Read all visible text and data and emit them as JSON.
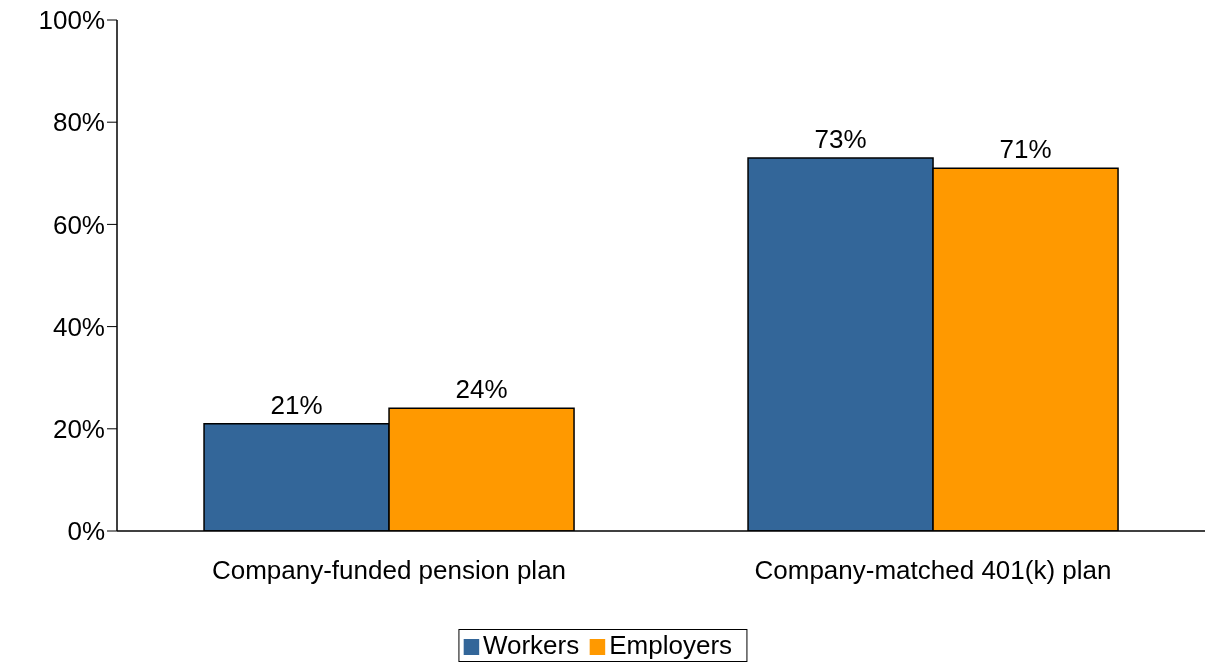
{
  "chart_data": {
    "type": "bar",
    "categories": [
      "Company-funded pension plan",
      "Company-matched 401(k) plan"
    ],
    "series": [
      {
        "name": "Workers",
        "color": "#336699",
        "values": [
          21,
          73
        ],
        "value_labels": [
          "21%",
          "73%"
        ]
      },
      {
        "name": "Employers",
        "color": "#ff9900",
        "values": [
          24,
          71
        ],
        "value_labels": [
          "24%",
          "71%"
        ]
      }
    ],
    "ylim": [
      0,
      100
    ],
    "yticks": [
      {
        "value": 0,
        "label": "0%"
      },
      {
        "value": 20,
        "label": "20%"
      },
      {
        "value": 40,
        "label": "40%"
      },
      {
        "value": 60,
        "label": "60%"
      },
      {
        "value": 80,
        "label": "80%"
      },
      {
        "value": 100,
        "label": "100%"
      }
    ],
    "legend": "bottom"
  }
}
